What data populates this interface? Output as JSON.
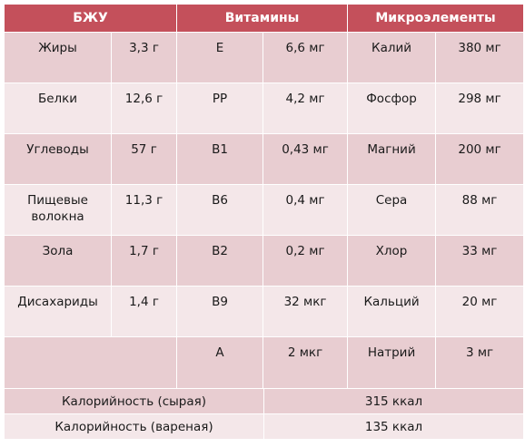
{
  "headers": [
    "БЖУ",
    "Витамины",
    "Микроэлементы"
  ],
  "rows": [
    {
      "bju_name": "Жиры",
      "bju_value": "3,3 г",
      "vit_name": "E",
      "vit_value": "6,6 мг",
      "min_name": "Калий",
      "min_value": "380 мг"
    },
    {
      "bju_name": "Белки",
      "bju_value": "12,6 г",
      "vit_name": "PP",
      "vit_value": "4,2 мг",
      "min_name": "Фосфор",
      "min_value": "298 мг"
    },
    {
      "bju_name": "Углеводы",
      "bju_value": "57 г",
      "vit_name": "B1",
      "vit_value": "0,43 мг",
      "min_name": "Магний",
      "min_value": "200 мг"
    },
    {
      "bju_name": "Пищевые волокна",
      "bju_value": "11,3 г",
      "vit_name": "B6",
      "vit_value": "0,4 мг",
      "min_name": "Сера",
      "min_value": "88 мг"
    },
    {
      "bju_name": "Зола",
      "bju_value": "1,7 г",
      "vit_name": "B2",
      "vit_value": "0,2 мг",
      "min_name": "Хлор",
      "min_value": "33 мг"
    },
    {
      "bju_name": "Дисахариды",
      "bju_value": "1,4 г",
      "vit_name": "B9",
      "vit_value": "32 мкг",
      "min_name": "Кальций",
      "min_value": "20 мг"
    },
    {
      "bju_name": "",
      "bju_value": "",
      "vit_name": "A",
      "vit_value": "2 мкг",
      "min_name": "Натрий",
      "min_value": "3 мг"
    }
  ],
  "calories": [
    {
      "label": "Калорийность (сырая)",
      "value": "315 ккал"
    },
    {
      "label": "Калорийность (вареная)",
      "value": "135 ккал"
    }
  ],
  "colors": {
    "header": "#c4505b",
    "row_dark": "#e8cdd1",
    "row_light": "#f4e7e9"
  }
}
